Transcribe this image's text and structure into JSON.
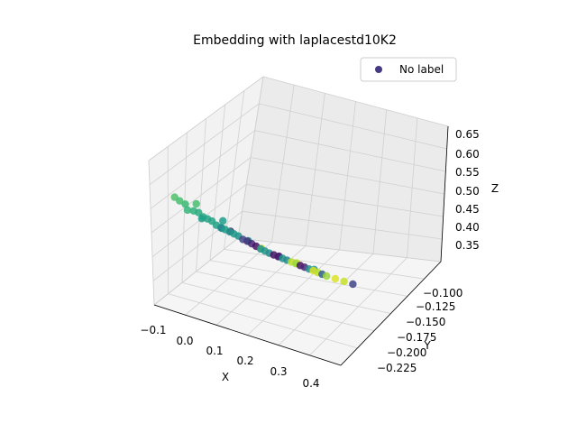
{
  "chart_data": {
    "type": "scatter",
    "title": "Embedding with laplacestd10K2",
    "xlabel": "X",
    "ylabel": "Y",
    "zlabel": "Z",
    "x_ticks": [
      "−0.1",
      "0.0",
      "0.1",
      "0.2",
      "0.3",
      "0.4"
    ],
    "y_ticks": [
      "−0.100",
      "−0.125",
      "−0.150",
      "−0.175",
      "−0.200",
      "−0.225"
    ],
    "z_ticks": [
      "0.35",
      "0.40",
      "0.45",
      "0.50",
      "0.55",
      "0.60",
      "0.65"
    ],
    "xlim": [
      -0.13,
      0.45
    ],
    "ylim": [
      -0.24,
      -0.09
    ],
    "zlim": [
      0.31,
      0.67
    ],
    "legend": {
      "label": "No label",
      "color": "#443983",
      "placement": "top-right"
    },
    "grid": true,
    "colormap": "viridis",
    "series": [
      {
        "points": [
          [
            -0.08,
            -0.105,
            0.575,
            0.72
          ],
          [
            -0.07,
            -0.108,
            0.565,
            0.7
          ],
          [
            -0.06,
            -0.112,
            0.555,
            0.68
          ],
          [
            -0.05,
            -0.11,
            0.545,
            0.66
          ],
          [
            -0.04,
            -0.115,
            0.54,
            0.64
          ],
          [
            -0.03,
            -0.118,
            0.535,
            0.62
          ],
          [
            -0.02,
            -0.12,
            0.525,
            0.6
          ],
          [
            -0.01,
            -0.122,
            0.52,
            0.58
          ],
          [
            0.0,
            -0.124,
            0.515,
            0.58
          ],
          [
            0.01,
            -0.126,
            0.505,
            0.57
          ],
          [
            0.02,
            -0.128,
            0.5,
            0.56
          ],
          [
            0.03,
            -0.13,
            0.495,
            0.55
          ],
          [
            0.04,
            -0.132,
            0.49,
            0.54
          ],
          [
            0.05,
            -0.134,
            0.485,
            0.53
          ],
          [
            0.06,
            -0.136,
            0.48,
            0.52
          ],
          [
            0.07,
            -0.138,
            0.472,
            0.2
          ],
          [
            0.08,
            -0.14,
            0.468,
            0.15
          ],
          [
            0.09,
            -0.142,
            0.462,
            0.1
          ],
          [
            0.1,
            -0.144,
            0.456,
            0.05
          ],
          [
            0.11,
            -0.146,
            0.45,
            0.5
          ],
          [
            0.12,
            -0.148,
            0.445,
            0.52
          ],
          [
            0.13,
            -0.15,
            0.44,
            0.48
          ],
          [
            0.14,
            -0.152,
            0.436,
            0.05
          ],
          [
            0.15,
            -0.154,
            0.432,
            0.08
          ],
          [
            0.16,
            -0.156,
            0.428,
            0.5
          ],
          [
            0.17,
            -0.158,
            0.424,
            0.48
          ],
          [
            0.18,
            -0.16,
            0.42,
            0.9
          ],
          [
            0.19,
            -0.162,
            0.416,
            0.85
          ],
          [
            0.2,
            -0.164,
            0.412,
            0.05
          ],
          [
            0.21,
            -0.166,
            0.408,
            0.1
          ],
          [
            0.22,
            -0.168,
            0.404,
            0.5
          ],
          [
            0.23,
            -0.17,
            0.4,
            0.95
          ],
          [
            0.24,
            -0.172,
            0.396,
            0.9
          ],
          [
            0.25,
            -0.174,
            0.392,
            0.3
          ],
          [
            0.26,
            -0.176,
            0.388,
            0.85
          ],
          [
            0.28,
            -0.18,
            0.382,
            0.95
          ],
          [
            0.3,
            -0.184,
            0.376,
            0.92
          ],
          [
            0.32,
            -0.188,
            0.37,
            0.2
          ],
          [
            -0.04,
            -0.12,
            0.552,
            0.7
          ],
          [
            0.02,
            -0.132,
            0.512,
            0.55
          ],
          [
            0.05,
            -0.128,
            0.498,
            0.05
          ],
          [
            0.09,
            -0.136,
            0.476,
            0.53
          ],
          [
            0.12,
            -0.142,
            0.458,
            0.9
          ],
          [
            0.16,
            -0.15,
            0.44,
            0.08
          ],
          [
            0.2,
            -0.158,
            0.425,
            0.93
          ],
          [
            0.24,
            -0.166,
            0.41,
            0.52
          ],
          [
            -0.01,
            -0.112,
            0.532,
            0.56
          ],
          [
            0.03,
            -0.124,
            0.505,
            0.45
          ]
        ]
      }
    ]
  }
}
